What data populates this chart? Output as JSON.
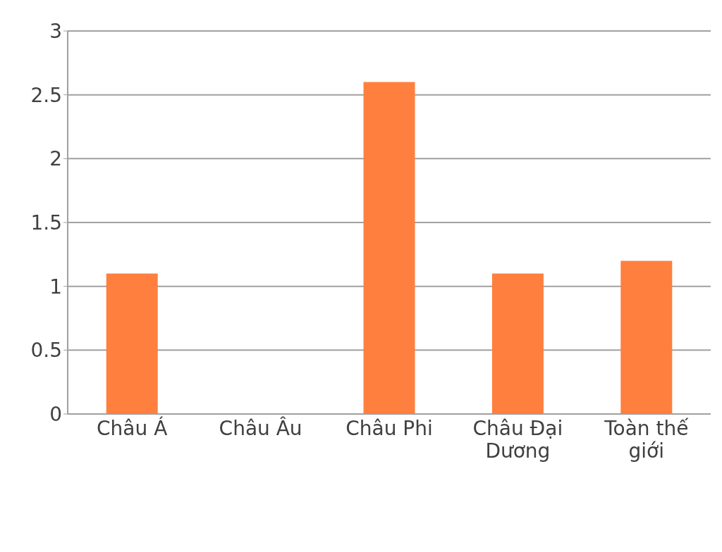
{
  "chart_data": {
    "type": "bar",
    "categories": [
      "Châu Á",
      "Châu Âu",
      "Châu Phi",
      "Châu Đại Dương",
      "Toàn thế giới"
    ],
    "values": [
      1.1,
      0,
      2.6,
      1.1,
      1.2
    ],
    "color": "#ff7f3f",
    "ylim": [
      0,
      3
    ],
    "yticks": [
      0,
      0.5,
      1,
      1.5,
      2,
      2.5,
      3
    ],
    "grid": "y"
  }
}
